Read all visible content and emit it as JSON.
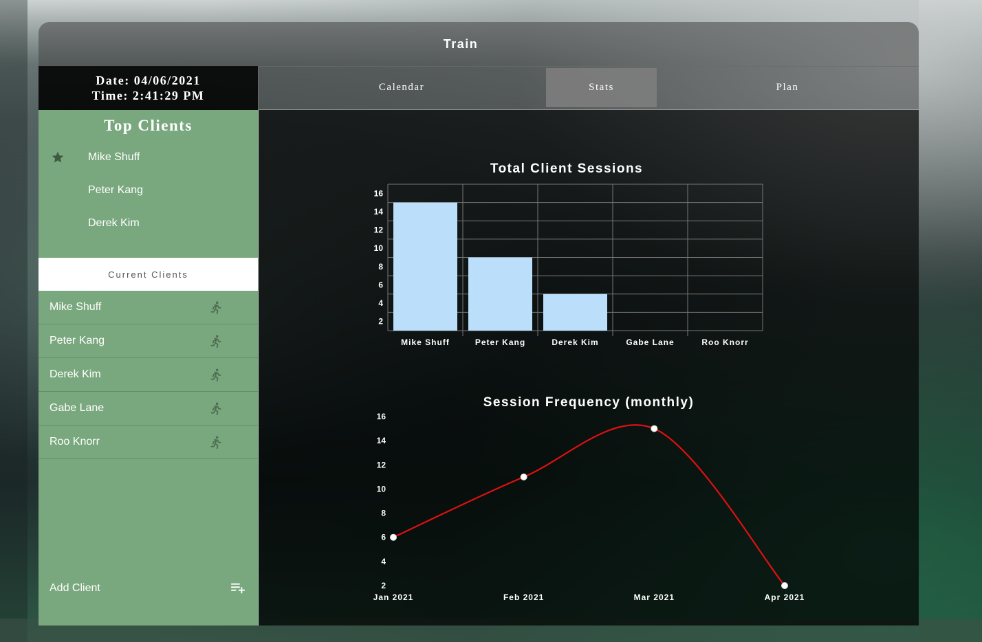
{
  "app": {
    "title": "Train"
  },
  "datetime": {
    "date": "Date: 04/06/2021",
    "time": "Time: 2:41:29 PM"
  },
  "tabs": [
    {
      "label": "Calendar",
      "active": false
    },
    {
      "label": "Stats",
      "active": true
    },
    {
      "label": "Plan",
      "active": false
    }
  ],
  "sidebar": {
    "top_clients_title": "Top Clients",
    "top_clients": [
      "Mike Shuff",
      "Peter Kang",
      "Derek Kim"
    ],
    "current_clients_title": "Current Clients",
    "current_clients": [
      "Mike Shuff",
      "Peter Kang",
      "Derek Kim",
      "Gabe Lane",
      "Roo Knorr"
    ],
    "add_client_label": "Add Client"
  },
  "colors": {
    "sidebar_bg": "#7aa87e",
    "bar_fill": "#bbdefb",
    "line_stroke": "#e01010",
    "icon": "#4e6f52"
  },
  "chart_data": [
    {
      "type": "bar",
      "title": "Total Client Sessions",
      "categories": [
        "Mike Shuff",
        "Peter Kang",
        "Derek Kim",
        "Gabe Lane",
        "Roo Knorr"
      ],
      "values": [
        15,
        9,
        5,
        1,
        1
      ],
      "ylim": [
        1,
        17
      ],
      "yticks": [
        "2",
        "4",
        "6",
        "8",
        "10",
        "12",
        "14",
        "16"
      ],
      "grid": true
    },
    {
      "type": "line",
      "title": "Session Frequency (monthly)",
      "categories": [
        "Jan 2021",
        "Feb 2021",
        "Mar 2021",
        "Apr 2021"
      ],
      "values": [
        6,
        11,
        15,
        2
      ],
      "ylim": [
        2,
        16
      ],
      "yticks": [
        "2",
        "4",
        "6",
        "8",
        "10",
        "12",
        "14",
        "16"
      ],
      "grid": false
    }
  ]
}
